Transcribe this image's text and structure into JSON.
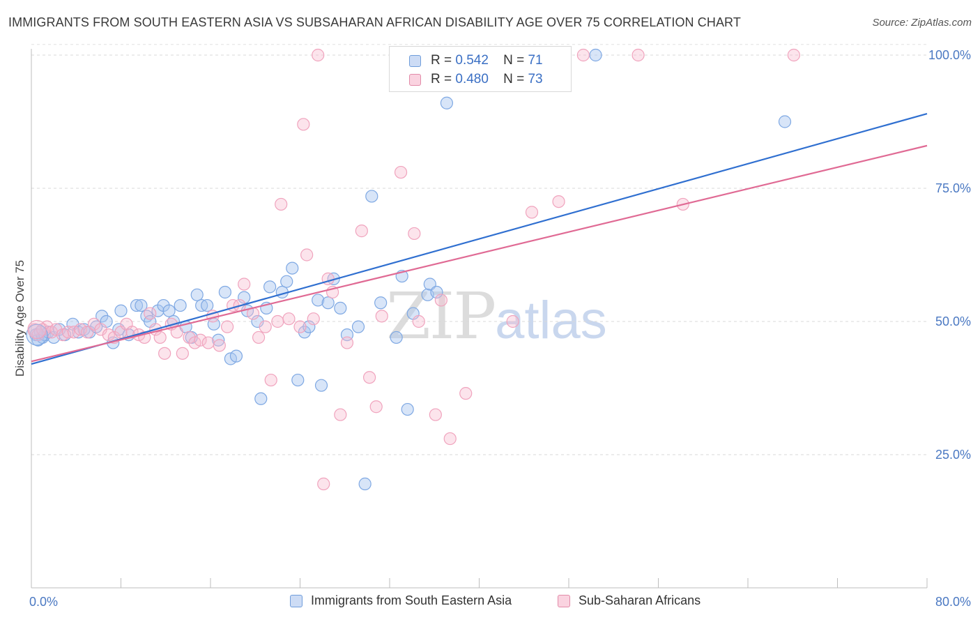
{
  "title": "IMMIGRANTS FROM SOUTH EASTERN ASIA VS SUBSAHARAN AFRICAN DISABILITY AGE OVER 75 CORRELATION CHART",
  "source": "Source: ZipAtlas.com",
  "watermark": {
    "zip": "ZIP",
    "atlas": "atlas"
  },
  "legend": {
    "rows": [
      {
        "r_label": "R =",
        "r_value": "0.542",
        "n_label": "N =",
        "n_value": "71",
        "color": "#a9c6f0",
        "border": "#6f9ddb"
      },
      {
        "r_label": "R =",
        "r_value": "0.480",
        "n_label": "N =",
        "n_value": "73",
        "color": "#f7bcd0",
        "border": "#e28aa8"
      }
    ]
  },
  "bottom_legend": [
    {
      "label": "Immigrants from South Eastern Asia",
      "color": "#a9c6f0",
      "border": "#6f9ddb"
    },
    {
      "label": "Sub-Saharan Africans",
      "color": "#f7bcd0",
      "border": "#e28aa8"
    }
  ],
  "chart_data": {
    "type": "scatter",
    "title": "IMMIGRANTS FROM SOUTH EASTERN ASIA VS SUBSAHARAN AFRICAN DISABILITY AGE OVER 75 CORRELATION CHART",
    "xlabel": "",
    "ylabel": "Disability Age Over 75",
    "xlim": [
      0,
      80
    ],
    "ylim": [
      0,
      102
    ],
    "x_tick_labels": [
      "0.0%",
      "80.0%"
    ],
    "y_ticks": [
      25,
      50,
      75,
      100
    ],
    "y_tick_labels": [
      "25.0%",
      "50.0%",
      "75.0%",
      "100.0%"
    ],
    "grid": "horizontal dashed",
    "legend_placement": "top-center",
    "series": [
      {
        "name": "Immigrants from South Eastern Asia",
        "color": "#7ea8e3",
        "line_color": "#2f6fd0",
        "trend": {
          "x": [
            0,
            80
          ],
          "y": [
            42.0,
            89.0
          ]
        },
        "points": [
          [
            0.4,
            47.5
          ],
          [
            0.6,
            46.5
          ],
          [
            0.8,
            48.0
          ],
          [
            1.0,
            47.0
          ],
          [
            1.2,
            47.5
          ],
          [
            1.5,
            48.0
          ],
          [
            2.0,
            47.0
          ],
          [
            2.5,
            48.5
          ],
          [
            3.0,
            47.5
          ],
          [
            3.7,
            49.5
          ],
          [
            4.2,
            48.0
          ],
          [
            4.7,
            48.5
          ],
          [
            5.2,
            48.0
          ],
          [
            5.8,
            49.0
          ],
          [
            6.3,
            51.0
          ],
          [
            6.7,
            50.0
          ],
          [
            7.3,
            46.0
          ],
          [
            7.8,
            48.5
          ],
          [
            8.0,
            52.0
          ],
          [
            8.7,
            47.5
          ],
          [
            9.4,
            53.0
          ],
          [
            9.8,
            53.0
          ],
          [
            10.3,
            51.0
          ],
          [
            10.6,
            50.0
          ],
          [
            11.3,
            52.0
          ],
          [
            11.8,
            53.0
          ],
          [
            12.3,
            52.0
          ],
          [
            12.7,
            50.0
          ],
          [
            13.3,
            53.0
          ],
          [
            13.8,
            49.0
          ],
          [
            14.3,
            47.0
          ],
          [
            14.8,
            55.0
          ],
          [
            15.2,
            53.0
          ],
          [
            15.7,
            53.0
          ],
          [
            16.3,
            49.5
          ],
          [
            16.7,
            46.5
          ],
          [
            17.3,
            55.5
          ],
          [
            17.8,
            43.0
          ],
          [
            18.3,
            43.5
          ],
          [
            19.0,
            54.5
          ],
          [
            19.3,
            52.0
          ],
          [
            20.2,
            50.0
          ],
          [
            20.5,
            35.5
          ],
          [
            21.0,
            52.5
          ],
          [
            21.3,
            56.5
          ],
          [
            22.4,
            55.5
          ],
          [
            22.8,
            57.5
          ],
          [
            23.3,
            60.0
          ],
          [
            23.8,
            39.0
          ],
          [
            24.4,
            48.0
          ],
          [
            24.8,
            49.0
          ],
          [
            25.6,
            54.0
          ],
          [
            25.9,
            38.0
          ],
          [
            26.5,
            53.5
          ],
          [
            27.0,
            58.0
          ],
          [
            27.6,
            52.5
          ],
          [
            28.2,
            47.5
          ],
          [
            29.2,
            49.0
          ],
          [
            29.8,
            19.5
          ],
          [
            30.4,
            73.5
          ],
          [
            31.2,
            53.5
          ],
          [
            32.6,
            47.0
          ],
          [
            33.1,
            58.5
          ],
          [
            33.6,
            33.5
          ],
          [
            34.1,
            51.5
          ],
          [
            35.4,
            55.0
          ],
          [
            35.6,
            57.0
          ],
          [
            36.2,
            55.5
          ],
          [
            37.1,
            91.0
          ],
          [
            50.4,
            100.0
          ],
          [
            67.3,
            87.5
          ]
        ]
      },
      {
        "name": "Sub-Saharan Africans",
        "color": "#f0a3bd",
        "line_color": "#e06a94",
        "trend": {
          "x": [
            0,
            80
          ],
          "y": [
            42.5,
            83.0
          ]
        },
        "points": [
          [
            0.3,
            48.5
          ],
          [
            0.6,
            47.5
          ],
          [
            1.0,
            48.5
          ],
          [
            1.4,
            49.0
          ],
          [
            1.8,
            48.0
          ],
          [
            2.2,
            48.5
          ],
          [
            2.8,
            47.5
          ],
          [
            3.3,
            48.0
          ],
          [
            3.8,
            48.0
          ],
          [
            4.4,
            48.5
          ],
          [
            5.0,
            48.0
          ],
          [
            5.6,
            49.5
          ],
          [
            6.2,
            48.5
          ],
          [
            6.9,
            47.5
          ],
          [
            7.4,
            47.0
          ],
          [
            8.0,
            48.0
          ],
          [
            8.5,
            49.5
          ],
          [
            9.0,
            48.0
          ],
          [
            9.6,
            47.5
          ],
          [
            10.1,
            47.0
          ],
          [
            10.6,
            51.5
          ],
          [
            11.1,
            48.5
          ],
          [
            11.5,
            47.0
          ],
          [
            11.9,
            44.0
          ],
          [
            12.5,
            49.5
          ],
          [
            13.0,
            48.0
          ],
          [
            13.5,
            44.0
          ],
          [
            14.1,
            47.0
          ],
          [
            14.6,
            46.0
          ],
          [
            15.1,
            46.5
          ],
          [
            15.8,
            46.0
          ],
          [
            16.2,
            51.0
          ],
          [
            16.8,
            45.5
          ],
          [
            17.5,
            49.0
          ],
          [
            18.0,
            53.0
          ],
          [
            18.6,
            53.0
          ],
          [
            19.0,
            57.0
          ],
          [
            19.8,
            51.5
          ],
          [
            20.3,
            47.0
          ],
          [
            20.9,
            49.0
          ],
          [
            21.4,
            39.0
          ],
          [
            22.0,
            50.0
          ],
          [
            22.3,
            72.0
          ],
          [
            23.0,
            50.5
          ],
          [
            24.0,
            49.0
          ],
          [
            24.3,
            87.0
          ],
          [
            24.6,
            62.5
          ],
          [
            25.2,
            50.5
          ],
          [
            25.6,
            100.0
          ],
          [
            26.1,
            19.5
          ],
          [
            26.5,
            58.0
          ],
          [
            26.9,
            55.5
          ],
          [
            27.6,
            32.5
          ],
          [
            28.2,
            46.0
          ],
          [
            29.5,
            67.0
          ],
          [
            30.2,
            39.5
          ],
          [
            30.8,
            34.0
          ],
          [
            31.3,
            51.0
          ],
          [
            33.0,
            78.0
          ],
          [
            34.2,
            66.5
          ],
          [
            34.6,
            50.0
          ],
          [
            36.1,
            32.5
          ],
          [
            36.6,
            54.0
          ],
          [
            37.4,
            28.0
          ],
          [
            38.8,
            36.5
          ],
          [
            43.0,
            50.0
          ],
          [
            44.7,
            70.5
          ],
          [
            47.1,
            72.5
          ],
          [
            49.3,
            100.0
          ],
          [
            54.2,
            100.0
          ],
          [
            58.2,
            72.0
          ],
          [
            68.1,
            100.0
          ],
          [
            33.2,
            100.0
          ]
        ]
      }
    ]
  }
}
